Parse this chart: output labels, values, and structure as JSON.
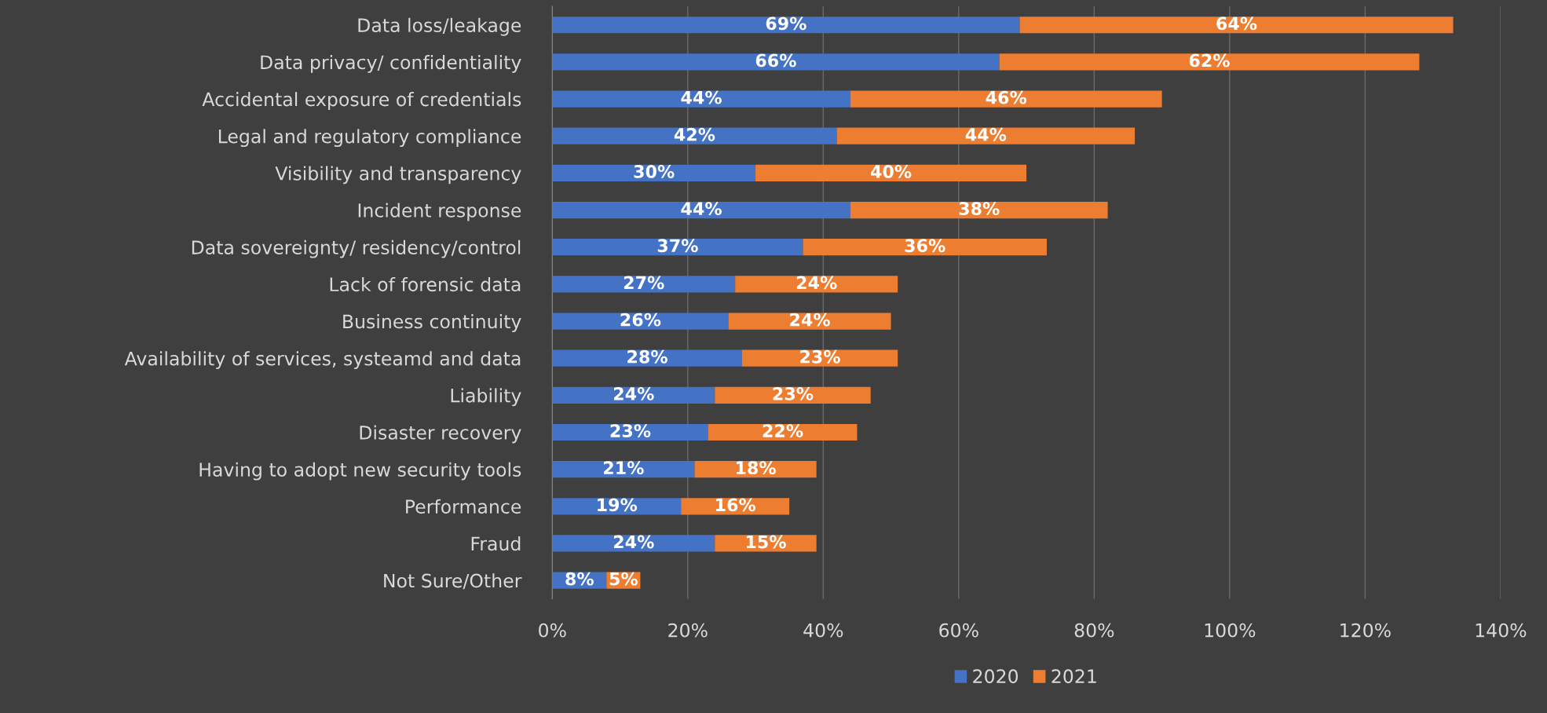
{
  "chart_data": {
    "type": "bar",
    "orientation": "horizontal",
    "stacked": true,
    "categories": [
      "Data loss/leakage",
      "Data privacy/ confidentiality",
      "Accidental exposure of credentials",
      "Legal and regulatory compliance",
      "Visibility and transparency",
      "Incident response",
      "Data sovereignty/ residency/control",
      "Lack of forensic data",
      "Business continuity",
      "Availability of services, systeamd and data",
      "Liability",
      "Disaster recovery",
      "Having to adopt new security tools",
      "Performance",
      "Fraud",
      "Not Sure/Other"
    ],
    "series": [
      {
        "name": "2020",
        "color": "#4472c4",
        "values": [
          69,
          66,
          44,
          42,
          30,
          44,
          37,
          27,
          26,
          28,
          24,
          23,
          21,
          19,
          24,
          8
        ],
        "value_labels": [
          "69%",
          "66%",
          "44%",
          "42%",
          "30%",
          "44%",
          "37%",
          "27%",
          "26%",
          "28%",
          "24%",
          "23%",
          "21%",
          "19%",
          "24%",
          "8%"
        ]
      },
      {
        "name": "2021",
        "color": "#ed7d31",
        "values": [
          64,
          62,
          46,
          44,
          40,
          38,
          36,
          24,
          24,
          23,
          23,
          22,
          18,
          16,
          15,
          5
        ],
        "value_labels": [
          "64%",
          "62%",
          "46%",
          "44%",
          "40%",
          "38%",
          "36%",
          "24%",
          "24%",
          "23%",
          "23%",
          "22%",
          "18%",
          "16%",
          "15%",
          "5%"
        ]
      }
    ],
    "xlim": [
      0,
      140
    ],
    "xticks": [
      {
        "value": 0,
        "label": "0%"
      },
      {
        "value": 20,
        "label": "20%"
      },
      {
        "value": 40,
        "label": "40%"
      },
      {
        "value": 60,
        "label": "60%"
      },
      {
        "value": 80,
        "label": "80%"
      },
      {
        "value": 100,
        "label": "100%"
      },
      {
        "value": 120,
        "label": "120%"
      },
      {
        "value": 140,
        "label": "140%"
      }
    ],
    "grid": "x",
    "legend": "bottom"
  }
}
